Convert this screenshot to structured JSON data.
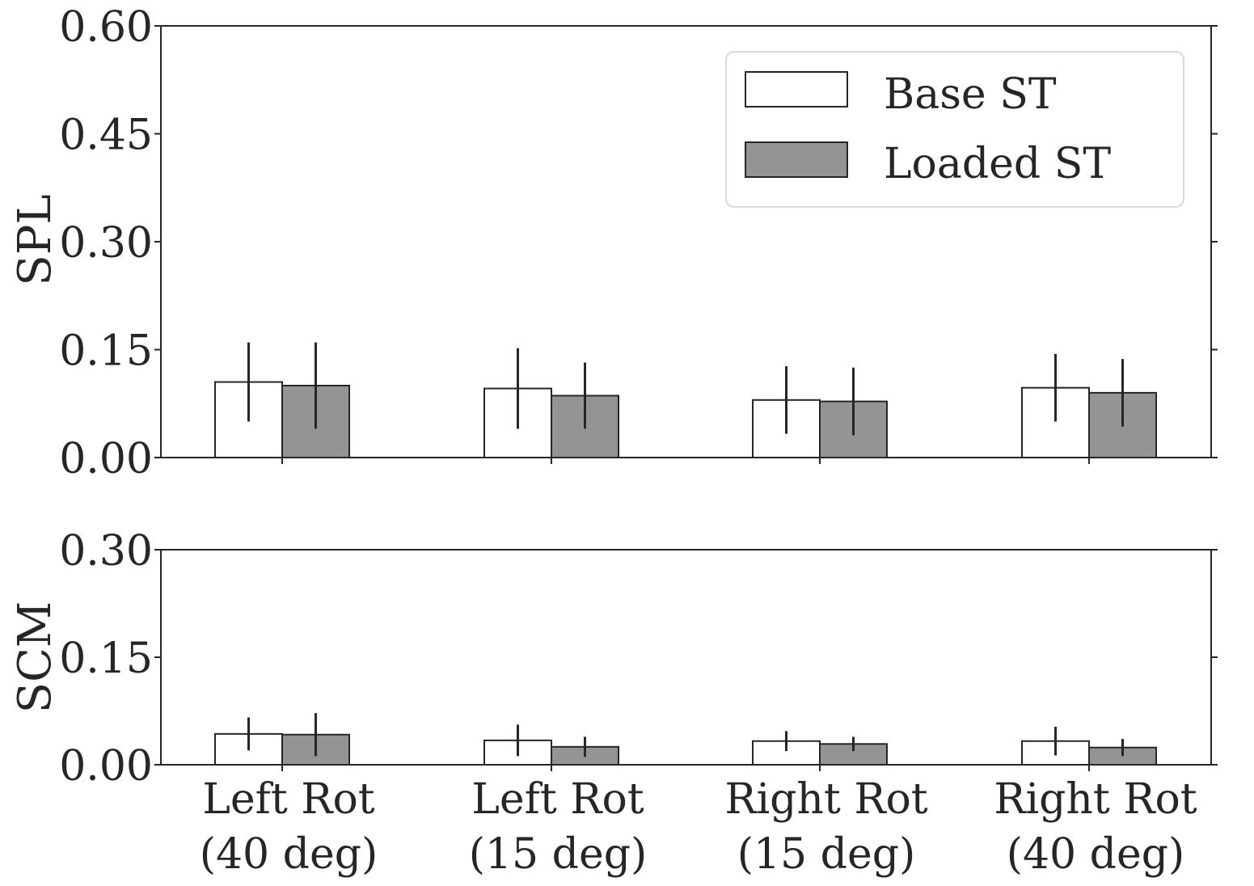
{
  "colors": {
    "base": "#ffffff",
    "loaded": "#949494",
    "edge": "#262626",
    "errorbar": "#262626",
    "legend_border": "#d9d9d9"
  },
  "legend": {
    "placement": "top-right of upper panel",
    "items": [
      {
        "label": "Base ST",
        "color": "#ffffff"
      },
      {
        "label": "Loaded ST",
        "color": "#949494"
      }
    ]
  },
  "chart_data": [
    {
      "type": "bar",
      "ylabel": "SPL",
      "xlabel": "",
      "ylim": [
        0,
        0.6
      ],
      "yticks": [
        "0.00",
        "0.15",
        "0.30",
        "0.45",
        "0.60"
      ],
      "ytick_values": [
        0,
        0.15,
        0.3,
        0.45,
        0.6
      ],
      "grid": false,
      "categories": [
        "Left Rot\n(40 deg)",
        "Left Rot\n(15 deg)",
        "Right Rot\n(15 deg)",
        "Right Rot\n(40 deg)"
      ],
      "series": [
        {
          "name": "Base ST",
          "values": [
            0.105,
            0.096,
            0.08,
            0.097
          ],
          "errors": [
            0.055,
            0.056,
            0.047,
            0.047
          ]
        },
        {
          "name": "Loaded ST",
          "values": [
            0.1,
            0.086,
            0.078,
            0.09
          ],
          "errors": [
            0.06,
            0.046,
            0.047,
            0.047
          ]
        }
      ]
    },
    {
      "type": "bar",
      "ylabel": "SCM",
      "xlabel": "",
      "ylim": [
        0,
        0.3
      ],
      "yticks": [
        "0.00",
        "0.15",
        "0.30"
      ],
      "ytick_values": [
        0,
        0.15,
        0.3
      ],
      "grid": false,
      "categories": [
        "Left Rot\n(40 deg)",
        "Left Rot\n(15 deg)",
        "Right Rot\n(15 deg)",
        "Right Rot\n(40 deg)"
      ],
      "series": [
        {
          "name": "Base ST",
          "values": [
            0.043,
            0.034,
            0.033,
            0.033
          ],
          "errors": [
            0.023,
            0.022,
            0.014,
            0.02
          ]
        },
        {
          "name": "Loaded ST",
          "values": [
            0.042,
            0.025,
            0.029,
            0.024
          ],
          "errors": [
            0.03,
            0.014,
            0.01,
            0.012
          ]
        }
      ]
    }
  ]
}
